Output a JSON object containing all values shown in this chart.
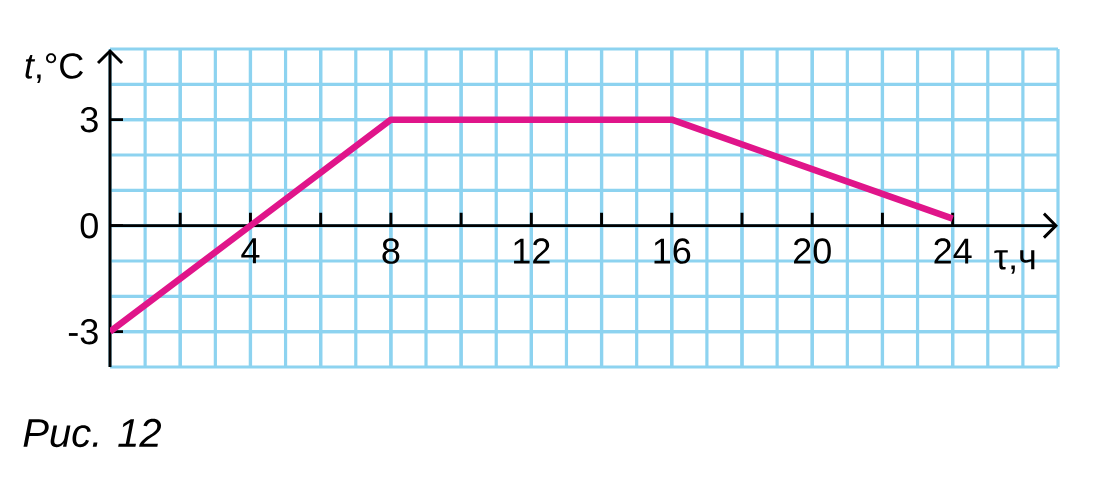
{
  "chart_data": {
    "type": "line",
    "xlabel": "τ,ч",
    "ylabel": "*t*,°C",
    "annotations": [
      "Рис. 12"
    ],
    "x": [
      0,
      8,
      16,
      24
    ],
    "series": [
      {
        "color": "#e0158a",
        "values": [
          -3,
          3,
          3,
          0.2
        ]
      }
    ],
    "xlim": [
      0,
      27
    ],
    "ylim": [
      -4,
      5
    ],
    "xticks": [
      {
        "value": 2,
        "label": null
      },
      4,
      {
        "value": 6,
        "label": null
      },
      8,
      {
        "value": 10,
        "label": null
      },
      12,
      {
        "value": 14,
        "label": null
      },
      16,
      {
        "value": 18,
        "label": null
      },
      20,
      {
        "value": 22,
        "label": null
      },
      24
    ],
    "yticks": [
      -3,
      0,
      3
    ],
    "grid": true,
    "line_style": "solid"
  }
}
